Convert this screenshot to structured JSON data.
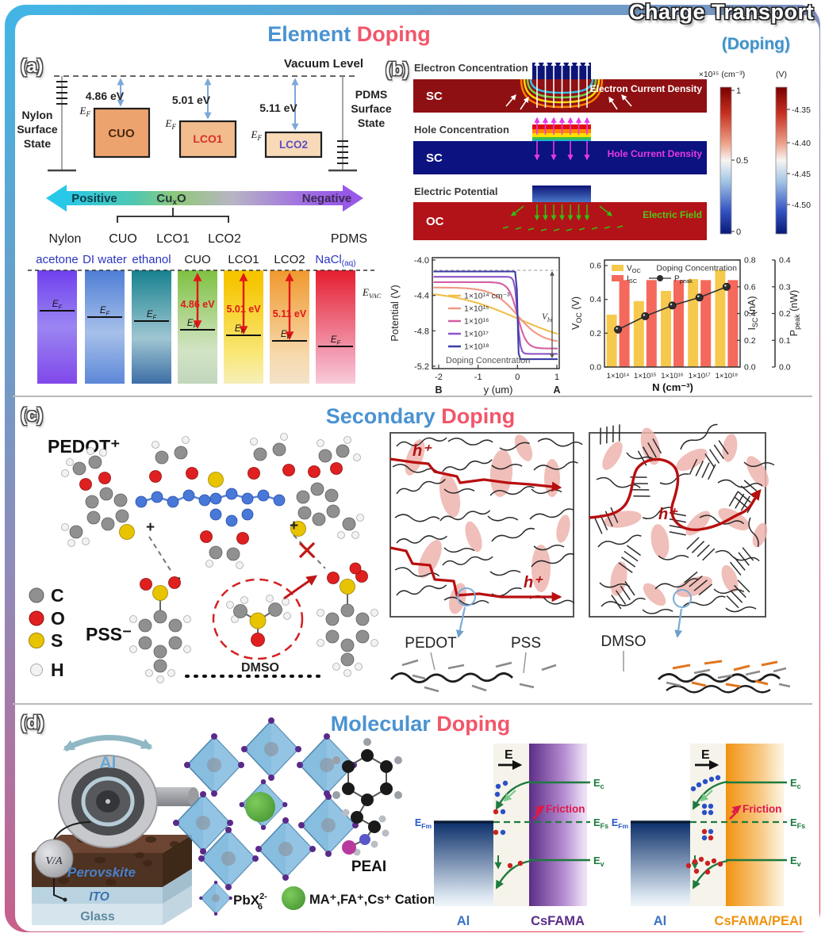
{
  "frame": {
    "title": "Charge Transport",
    "subtitle": "(Doping)"
  },
  "headers": {
    "element": {
      "w1": "Element",
      "w2": "Doping"
    },
    "secondary": {
      "w1": "Secondary",
      "w2": "Doping"
    },
    "molecular": {
      "w1": "Molecular",
      "w2": "Doping"
    }
  },
  "accent_colors": {
    "header_blue": "#4a93d2",
    "header_pink": "#f2566a",
    "subtitle_blue": "#3f93c8"
  },
  "panel_a": {
    "tag": "(a)",
    "vacuum_level": "Vacuum Level",
    "nylon": [
      "Nylon",
      "Surface",
      "State"
    ],
    "pdms": [
      "PDMS",
      "Surface",
      "State"
    ],
    "ef": {
      "main": "E",
      "sub": "F"
    },
    "evac": {
      "main": "E",
      "sub": "VAC"
    },
    "boxes": [
      {
        "name": "CUO",
        "ev": "4.86 eV"
      },
      {
        "name": "LCO1",
        "ev": "5.01 eV"
      },
      {
        "name": "LCO2",
        "ev": "5.11 eV"
      }
    ],
    "scale": {
      "positive": "Positive",
      "cux": {
        "main": "Cu",
        "sub": "x",
        "rest": "O"
      },
      "negative": "Negative"
    },
    "materials": [
      "Nylon",
      "CUO",
      "LCO1",
      "LCO2",
      "PDMS"
    ],
    "col_labels": [
      "acetone",
      "DI water",
      "ethanol",
      "CUO",
      "LCO1",
      "LCO2"
    ],
    "nacl": {
      "main": "NaCl",
      "sub": "(aq)"
    },
    "col_evs": [
      "4.86 eV",
      "5.01 eV",
      "5.11 eV"
    ]
  },
  "panel_b": {
    "tag": "(b)",
    "sims": [
      {
        "title": "Electron Concentration",
        "region": "SC",
        "overlay": "Electron Current Density"
      },
      {
        "title": "Hole Concentration",
        "region": "SC",
        "overlay": "Hole Current Density"
      },
      {
        "title": "Electric Potential",
        "region": "OC",
        "overlay": "Electric Field"
      }
    ],
    "colorbar_conc": {
      "title": "×10¹⁵ (cm⁻³)",
      "ticks": [
        "1",
        "0.5",
        "0"
      ]
    },
    "colorbar_pot": {
      "title": "(V)",
      "ticks": [
        "-4.35",
        "-4.40",
        "-4.45",
        "-4.50"
      ]
    }
  },
  "panel_c": {
    "tag": "(c)",
    "pedot_ion": "PEDOT⁺",
    "pss_ion": "PSS⁻",
    "dmso": "DMSO",
    "charge_plus": "+",
    "charge_minus": "−",
    "atom_legend": [
      {
        "symbol": "C",
        "color": "#909090"
      },
      {
        "symbol": "O",
        "color": "#e02020"
      },
      {
        "symbol": "S",
        "color": "#e8c400"
      },
      {
        "symbol": "H",
        "color": "#f2f2f2"
      }
    ],
    "hole": "h⁺",
    "chain_labels": [
      "PEDOT",
      "PSS",
      "DMSO"
    ]
  },
  "panel_d": {
    "tag": "(d)",
    "device": {
      "disc": "Al",
      "meter": "V/A",
      "perovskite": "Perovskite",
      "ito": "ITO",
      "glass": "Glass"
    },
    "crystal": {
      "pbx": {
        "main": "PbX",
        "sup": "2-",
        "sub": "6"
      },
      "cations": "MA⁺,FA⁺,Cs⁺ Cations",
      "peai": "PEAI"
    },
    "band": {
      "efield": "E",
      "friction": "Friction",
      "ec": {
        "main": "E",
        "sub": "c"
      },
      "efs": {
        "main": "E",
        "sub": "Fs"
      },
      "ev": {
        "main": "E",
        "sub": "v"
      },
      "efm": {
        "main": "E",
        "sub": "Fm"
      },
      "left_metal": "Al",
      "left_sc": "CsFAMA",
      "right_metal": "Al",
      "right_sc": "CsFAMA/PEAI"
    }
  },
  "chart_data": [
    {
      "type": "line",
      "xlabel": "y (um)",
      "ylabel": "Potential (V)",
      "xlim": [
        -2,
        1
      ],
      "ylim": [
        -5.2,
        -4.0
      ],
      "x_tick_labels": [
        "-2",
        "-1",
        "0",
        "1"
      ],
      "y_tick_labels": [
        "-4.0",
        "-4.4",
        "-4.8",
        "-5.2"
      ],
      "endpoint_labels": [
        "B",
        "A"
      ],
      "legend_title": "Doping Concentration",
      "vbi": {
        "main": "V",
        "sub": "bi"
      },
      "series": [
        {
          "name": "1×10¹⁴ cm⁻³",
          "color": "#f0bf4a",
          "v_left": -4.34,
          "v_right": -4.98,
          "steepness": 1.2
        },
        {
          "name": "1×10¹⁵",
          "color": "#ef9884",
          "v_left": -4.31,
          "v_right": -4.94,
          "steepness": 3.2
        },
        {
          "name": "1×10¹⁶",
          "color": "#d55fa2",
          "v_left": -4.25,
          "v_right": -5.0,
          "steepness": 9
        },
        {
          "name": "1×10¹⁷",
          "color": "#8e55c8",
          "v_left": -4.19,
          "v_right": -5.06,
          "steepness": 28
        },
        {
          "name": "1×10¹⁸",
          "color": "#3d3da8",
          "v_left": -4.13,
          "v_right": -5.12,
          "steepness": 90
        }
      ]
    },
    {
      "type": "bar",
      "title": "Doping Concentration",
      "xlabel": "N (cm⁻³)",
      "categories": [
        "1×10¹⁴",
        "1×10¹⁵",
        "1×10¹⁶",
        "1×10¹⁷",
        "1×10¹⁸"
      ],
      "series": [
        {
          "name": {
            "main": "V",
            "sub": "OC"
          },
          "axis_label_rest": " (V)",
          "kind": "bar",
          "color": "#f6c94c",
          "values": [
            0.31,
            0.39,
            0.45,
            0.52,
            0.575
          ],
          "axis_ticks": [
            "0.0",
            "0.2",
            "0.4",
            "0.6"
          ],
          "axis_max": 0.6
        },
        {
          "name": {
            "main": "I",
            "sub": "SC"
          },
          "axis_label_rest": " (nA)",
          "kind": "bar",
          "color": "#f4695c",
          "values": [
            0.65,
            0.65,
            0.65,
            0.65,
            0.65
          ],
          "axis_ticks": [
            "0.0",
            "0.2",
            "0.4",
            "0.6",
            "0.8"
          ],
          "axis_max": 0.8
        },
        {
          "name": {
            "main": "P",
            "sub": "peak"
          },
          "axis_label_rest": " (nW)",
          "kind": "scatter-line",
          "color": "#2e2e2e",
          "values": [
            0.14,
            0.19,
            0.23,
            0.26,
            0.3
          ],
          "axis_ticks": [
            "0.0",
            "0.1",
            "0.2",
            "0.3",
            "0.4"
          ],
          "axis_max": 0.4
        }
      ]
    }
  ]
}
